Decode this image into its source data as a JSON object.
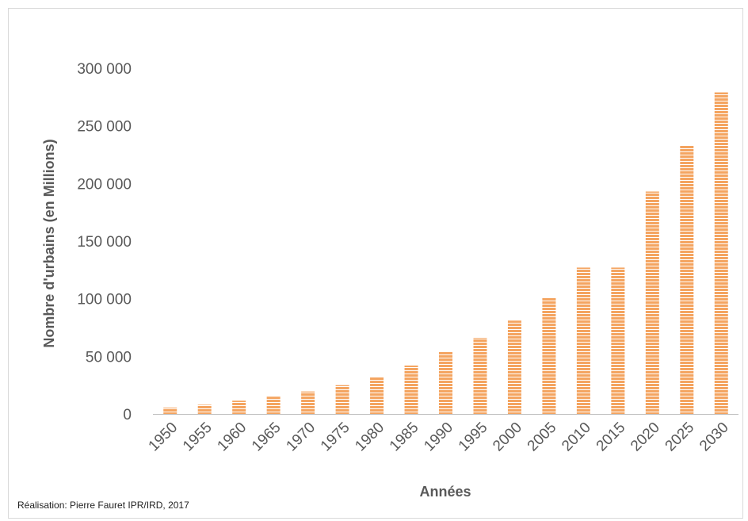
{
  "chart_data": {
    "type": "bar",
    "title": "",
    "xlabel": "Années",
    "ylabel": "Nombre d'urbains (en Millions)",
    "categories": [
      "1950",
      "1955",
      "1960",
      "1965",
      "1970",
      "1975",
      "1980",
      "1985",
      "1990",
      "1995",
      "2000",
      "2005",
      "2010",
      "2015",
      "2020",
      "2025",
      "2030"
    ],
    "values": [
      5500,
      8000,
      11500,
      15000,
      19500,
      25000,
      32000,
      42000,
      54000,
      66000,
      81000,
      101000,
      127000,
      127000,
      193000,
      233000,
      279000
    ],
    "ylim": [
      0,
      300000
    ],
    "yticks": [
      "0",
      "50 000",
      "100 000",
      "150 000",
      "200 000",
      "250 000",
      "300 000"
    ],
    "grid": false,
    "legend": "none",
    "bar_color": "#f4a460",
    "bar_stripe_color": "#ffffff",
    "axis_color": "#bfbfbf"
  },
  "credit": "Réalisation: Pierre Fauret IPR/IRD, 2017"
}
